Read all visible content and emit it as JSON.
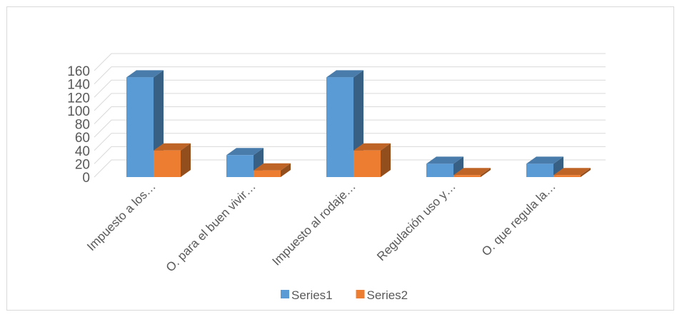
{
  "chart_data": {
    "type": "bar",
    "subtype": "3d-clustered-column",
    "title": "",
    "xlabel": "",
    "ylabel": "",
    "categories": [
      "Impuesto a los…",
      "O. para el buen vivir…",
      "Impuesto al rodaje…",
      "Regulación uso y…",
      "O. que regula la…"
    ],
    "series": [
      {
        "name": "Series1",
        "color": "#5b9bd5",
        "values": [
          150,
          33,
          150,
          20,
          20
        ]
      },
      {
        "name": "Series2",
        "color": "#ed7d31",
        "values": [
          40,
          10,
          40,
          3,
          3
        ]
      }
    ],
    "ylim": [
      0,
      160
    ],
    "yticks": [
      0,
      20,
      40,
      60,
      80,
      100,
      120,
      140,
      160
    ],
    "grid": true,
    "legend_position": "bottom"
  }
}
